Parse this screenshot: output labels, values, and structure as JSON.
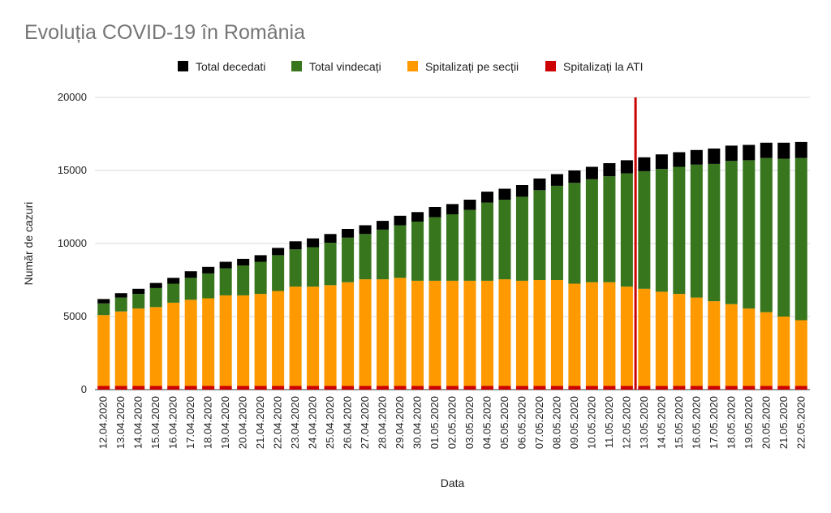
{
  "chart_data": {
    "type": "bar",
    "stacked": true,
    "title": "Evoluția COVID-19 în România",
    "xlabel": "Data",
    "ylabel": "Număr de cazuri",
    "ylim": [
      0,
      20000
    ],
    "yticks": [
      0,
      5000,
      10000,
      15000,
      20000
    ],
    "grid": true,
    "legend_position": "top",
    "legend": [
      {
        "name": "Total decedati",
        "color": "#000000"
      },
      {
        "name": "Total vindecați",
        "color": "#38761d"
      },
      {
        "name": "Spitalizați pe secții",
        "color": "#ff9900"
      },
      {
        "name": "Spitalizați la ATI",
        "color": "#cc0000"
      }
    ],
    "marker": {
      "after_category": "12.05.2020",
      "color": "#cc0000"
    },
    "categories": [
      "12.04.2020",
      "13.04.2020",
      "14.04.2020",
      "15.04.2020",
      "16.04.2020",
      "17.04.2020",
      "18.04.2020",
      "19.04.2020",
      "20.04.2020",
      "21.04.2020",
      "22.04.2020",
      "23.04.2020",
      "24.04.2020",
      "25.04.2020",
      "26.04.2020",
      "27.04.2020",
      "28.04.2020",
      "29.04.2020",
      "30.04.2020",
      "01.05.2020",
      "02.05.2020",
      "03.05.2020",
      "04.05.2020",
      "05.05.2020",
      "06.05.2020",
      "07.05.2020",
      "08.05.2020",
      "09.05.2020",
      "10.05.2020",
      "11.05.2020",
      "12.05.2020",
      "13.05.2020",
      "14.05.2020",
      "15.05.2020",
      "16.05.2020",
      "17.05.2020",
      "18.05.2020",
      "19.05.2020",
      "20.05.2020",
      "21.05.2020",
      "22.05.2020"
    ],
    "series": [
      {
        "name": "Spitalizați la ATI",
        "color": "#cc0000",
        "values": [
          250,
          250,
          250,
          250,
          250,
          250,
          250,
          250,
          250,
          250,
          250,
          250,
          250,
          250,
          250,
          250,
          250,
          250,
          250,
          250,
          250,
          250,
          250,
          250,
          250,
          250,
          250,
          250,
          250,
          250,
          250,
          250,
          250,
          250,
          250,
          250,
          250,
          250,
          250,
          250,
          250
        ]
      },
      {
        "name": "Spitalizați pe secții",
        "color": "#ff9900",
        "values": [
          4850,
          5100,
          5300,
          5400,
          5700,
          5900,
          6000,
          6200,
          6200,
          6300,
          6500,
          6800,
          6800,
          6900,
          7100,
          7300,
          7300,
          7400,
          7200,
          7200,
          7200,
          7200,
          7200,
          7300,
          7200,
          7250,
          7250,
          7000,
          7100,
          7100,
          6800,
          6650,
          6450,
          6300,
          6050,
          5800,
          5600,
          5300,
          5050,
          4750,
          4500
        ]
      },
      {
        "name": "Total vindecați",
        "color": "#38761d",
        "values": [
          800,
          950,
          1000,
          1300,
          1300,
          1500,
          1700,
          1850,
          2050,
          2200,
          2450,
          2550,
          2700,
          2900,
          3050,
          3100,
          3400,
          3600,
          4050,
          4350,
          4550,
          4850,
          5350,
          5450,
          5750,
          6150,
          6450,
          6900,
          7050,
          7250,
          7750,
          8050,
          8400,
          8700,
          9100,
          9400,
          9800,
          10150,
          10550,
          10800,
          11100
        ]
      },
      {
        "name": "Total decedati",
        "color": "#000000",
        "values": [
          300,
          300,
          350,
          350,
          400,
          450,
          450,
          450,
          450,
          450,
          500,
          550,
          600,
          600,
          600,
          600,
          600,
          650,
          650,
          700,
          700,
          700,
          750,
          750,
          800,
          800,
          800,
          850,
          850,
          900,
          900,
          950,
          1000,
          1000,
          1000,
          1050,
          1050,
          1050,
          1050,
          1100,
          1100
        ]
      }
    ]
  }
}
